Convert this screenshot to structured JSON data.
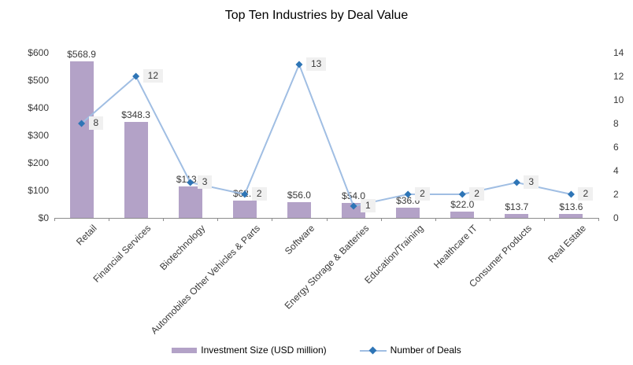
{
  "colors": {
    "bar": "#b3a2c7",
    "line": "#a0bee3",
    "marker": "#2e75b6",
    "label_bg": "#f0f0f0",
    "axis": "#8c8c8c",
    "text": "#3a3a3a"
  },
  "chart_data": {
    "type": "combo bar+line",
    "title": "Top Ten Industries by Deal Value",
    "categories": [
      "Retail",
      "Financial Services",
      "Biotechnology",
      "Automobiles Other Vehicles & Parts",
      "Software",
      "Energy Storage & Batteries",
      "Education/Training",
      "Healthcare IT",
      "Consumer Products",
      "Real Estate"
    ],
    "series": [
      {
        "name": "Investment Size (USD million)",
        "type": "bar",
        "axis": "left",
        "values": [
          568.9,
          348.3,
          113.7,
          62.1,
          56.0,
          54.0,
          36.6,
          22.0,
          13.7,
          13.6
        ],
        "labels": [
          "$568.9",
          "$348.3",
          "$113.7",
          "$62.1",
          "$56.0",
          "$54.0",
          "$36.6",
          "$22.0",
          "$13.7",
          "$13.6"
        ]
      },
      {
        "name": "Number of Deals",
        "type": "line",
        "axis": "right",
        "values": [
          8,
          12,
          3,
          2,
          13,
          1,
          2,
          2,
          3,
          2
        ],
        "labels": [
          "8",
          "12",
          "3",
          "2",
          "13",
          "1",
          "2",
          "2",
          "3",
          "2"
        ]
      }
    ],
    "left_axis": {
      "min": 0,
      "max": 600,
      "ticks": [
        "$600",
        "$500",
        "$400",
        "$300",
        "$200",
        "$100",
        "$0"
      ]
    },
    "right_axis": {
      "min": 0,
      "max": 14,
      "ticks": [
        "14",
        "12",
        "10",
        "8",
        "6",
        "4",
        "2",
        "0"
      ]
    },
    "grid": false,
    "legend_position": "bottom"
  }
}
